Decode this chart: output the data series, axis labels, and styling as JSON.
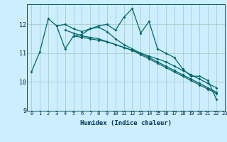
{
  "title": "",
  "xlabel": "Humidex (Indice chaleur)",
  "bg_color": "#cceeff",
  "grid_color": "#aacccc",
  "line_color": "#006666",
  "xlim": [
    -0.5,
    23
  ],
  "ylim": [
    9,
    12.7
  ],
  "yticks": [
    9,
    10,
    11,
    12
  ],
  "xticks": [
    0,
    1,
    2,
    3,
    4,
    5,
    6,
    7,
    8,
    9,
    10,
    11,
    12,
    13,
    14,
    15,
    16,
    17,
    18,
    19,
    20,
    21,
    22,
    23
  ],
  "curves": [
    {
      "x": [
        0,
        1,
        2,
        3,
        4,
        5,
        6,
        7,
        8,
        9,
        10,
        11,
        12,
        13,
        14,
        15,
        16,
        17,
        18,
        19,
        20,
        21,
        22
      ],
      "y": [
        10.35,
        11.05,
        12.2,
        11.95,
        11.15,
        11.6,
        11.65,
        11.85,
        11.95,
        12.0,
        11.8,
        12.25,
        12.55,
        11.7,
        12.1,
        11.15,
        11.0,
        10.85,
        10.45,
        10.2,
        10.2,
        10.05,
        9.4
      ]
    },
    {
      "x": [
        3,
        4,
        5,
        6,
        7,
        8,
        9,
        10,
        11,
        12,
        13,
        14,
        15,
        16,
        17,
        18,
        19,
        20,
        21,
        22
      ],
      "y": [
        11.95,
        12.0,
        11.85,
        11.75,
        11.85,
        11.9,
        11.75,
        11.5,
        11.3,
        11.15,
        11.0,
        10.85,
        10.7,
        10.55,
        10.4,
        10.25,
        10.1,
        9.95,
        9.8,
        9.65
      ]
    },
    {
      "x": [
        4,
        5,
        6,
        7,
        8,
        9,
        10,
        11,
        12,
        13,
        14,
        15,
        16,
        17,
        18,
        19,
        20,
        21,
        22
      ],
      "y": [
        11.8,
        11.7,
        11.6,
        11.55,
        11.5,
        11.4,
        11.3,
        11.2,
        11.1,
        11.0,
        10.9,
        10.8,
        10.7,
        10.55,
        10.4,
        10.25,
        10.1,
        9.95,
        9.8
      ]
    },
    {
      "x": [
        5,
        6,
        7,
        8,
        9,
        10,
        11,
        12,
        13,
        14,
        15,
        16,
        17,
        18,
        19,
        20,
        21,
        22
      ],
      "y": [
        11.6,
        11.55,
        11.5,
        11.45,
        11.4,
        11.3,
        11.2,
        11.1,
        10.95,
        10.8,
        10.65,
        10.5,
        10.35,
        10.2,
        10.05,
        9.9,
        9.75,
        9.6
      ]
    }
  ]
}
